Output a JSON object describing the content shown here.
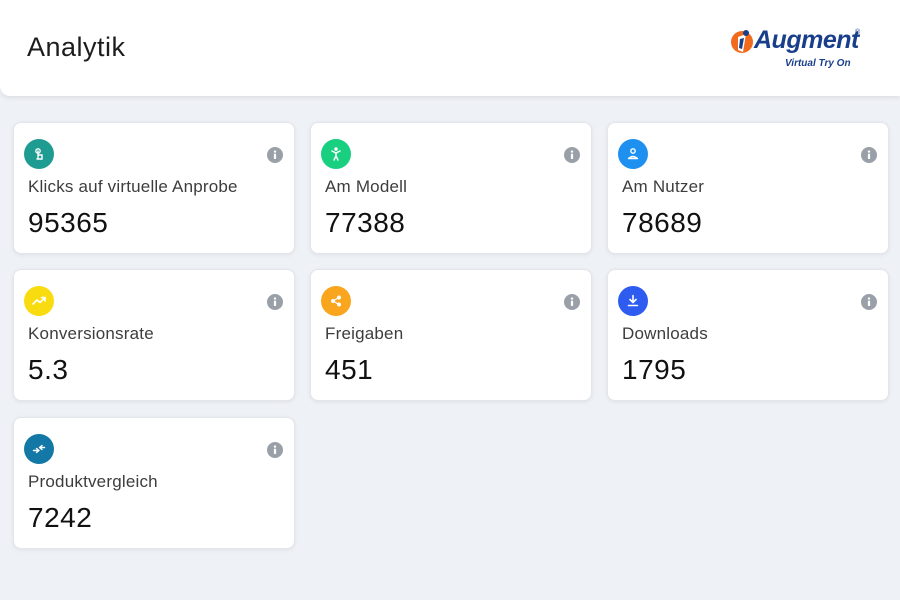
{
  "header": {
    "title": "Analytik",
    "logo": {
      "name": "Augment",
      "tagline": "Virtual Try On",
      "reg": "®"
    }
  },
  "cards": [
    {
      "label": "Klicks auf virtuelle Anprobe",
      "value": "95365",
      "icon": "touch-icon",
      "color": "#1f9c92"
    },
    {
      "label": "Am Modell",
      "value": "77388",
      "icon": "person-icon",
      "color": "#18d07f"
    },
    {
      "label": "Am Nutzer",
      "value": "78689",
      "icon": "user-icon",
      "color": "#1e90f0"
    },
    {
      "label": "Konversionsrate",
      "value": "5.3",
      "icon": "trending-up-icon",
      "color": "#f8dc10"
    },
    {
      "label": "Freigaben",
      "value": "451",
      "icon": "share-icon",
      "color": "#f9a61e"
    },
    {
      "label": "Downloads",
      "value": "1795",
      "icon": "download-icon",
      "color": "#2f5cf0"
    },
    {
      "label": "Produktvergleich",
      "value": "7242",
      "icon": "compare-icon",
      "color": "#1478a6"
    }
  ]
}
